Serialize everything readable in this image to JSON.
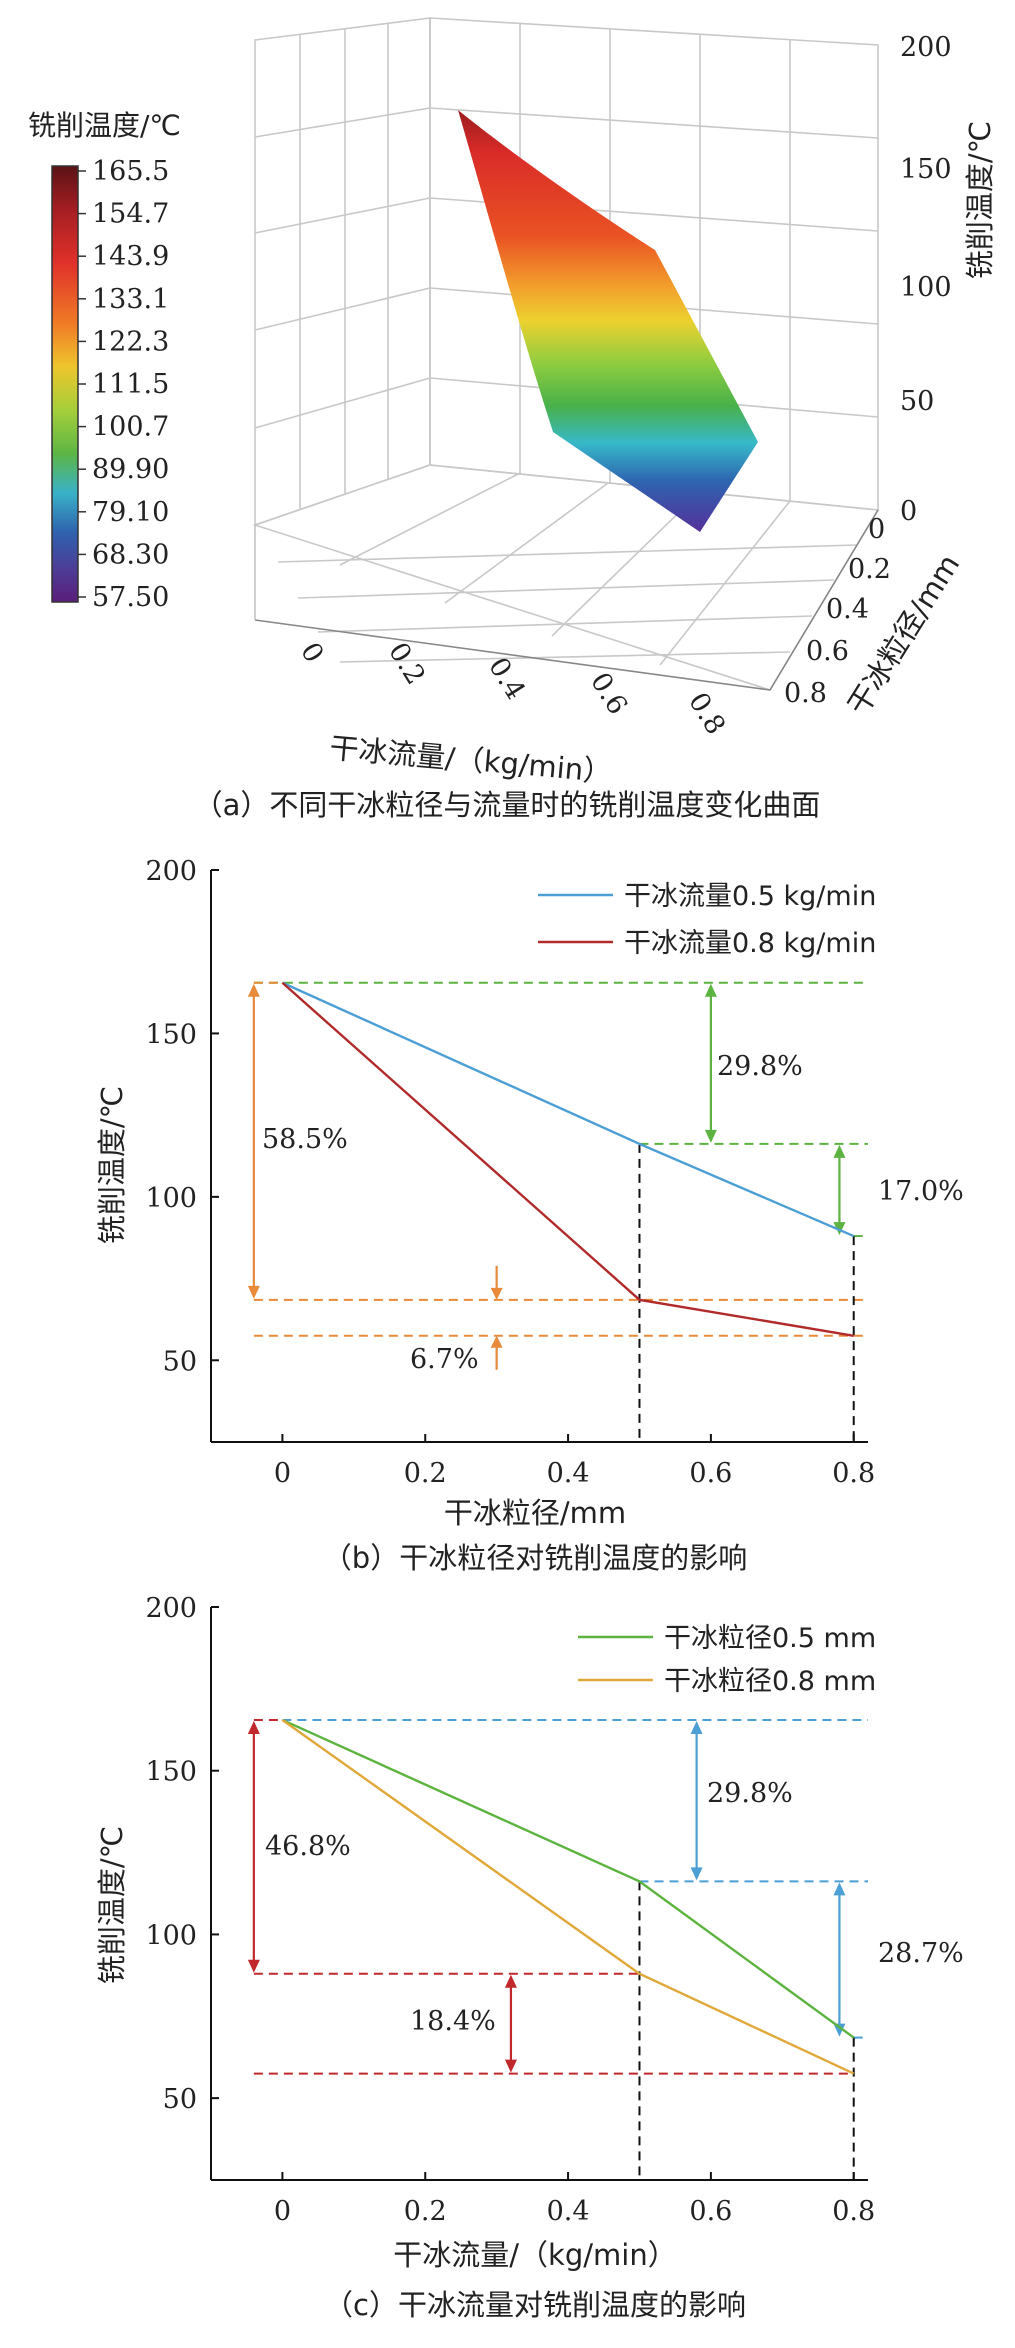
{
  "chart_data": [
    {
      "id": "a",
      "type": "surface",
      "caption": "（a）不同干冰粒径与流量时的铣削温度变化曲面",
      "xlabel": "干冰流量/（kg/min）",
      "ylabel": "干冰粒径/mm",
      "zlabel": "铣削温度/℃",
      "x_ticks": [
        "0",
        "0.2",
        "0.4",
        "0.6",
        "0.8"
      ],
      "y_ticks": [
        "0",
        "0.2",
        "0.4",
        "0.6",
        "0.8"
      ],
      "z_ticks": [
        "0",
        "50",
        "100",
        "150",
        "200"
      ],
      "colorbar_title": "铣削温度/℃",
      "colorbar_ticks": [
        "165.5",
        "154.7",
        "143.9",
        "133.1",
        "122.3",
        "111.5",
        "100.7",
        "89.90",
        "79.10",
        "68.30",
        "57.50"
      ],
      "colorbar_range": [
        57.5,
        165.5
      ],
      "corners": [
        {
          "x": 0,
          "y": 0,
          "z": 165.5
        },
        {
          "x": 0,
          "y": 0.8,
          "z": 88.0
        },
        {
          "x": 0.8,
          "y": 0.8,
          "z": 57.5
        },
        {
          "x": 0.8,
          "y": 0,
          "z": 68.5
        }
      ]
    },
    {
      "id": "b",
      "type": "line",
      "caption": "（b）干冰粒径对铣削温度的影响",
      "xlabel": "干冰粒径/mm",
      "ylabel": "铣削温度/℃",
      "xlim": [
        -0.1,
        0.82
      ],
      "ylim": [
        25,
        200
      ],
      "x_ticks": [
        0,
        0.2,
        0.4,
        0.6,
        0.8
      ],
      "y_ticks": [
        50,
        100,
        150,
        200
      ],
      "x_tick_labels": [
        "0",
        "0.2",
        "0.4",
        "0.6",
        "0.8"
      ],
      "y_tick_labels": [
        "50",
        "100",
        "150",
        "200"
      ],
      "legend_position": "top-right",
      "series": [
        {
          "name": "干冰流量0.5 kg/min",
          "color": "#4b9fd5",
          "x": [
            0,
            0.5,
            0.8
          ],
          "y": [
            165.5,
            116.2,
            88.0
          ]
        },
        {
          "name": "干冰流量0.8 kg/min",
          "color": "#b22a2a",
          "x": [
            0,
            0.5,
            0.8
          ],
          "y": [
            165.5,
            68.5,
            57.5
          ]
        }
      ],
      "annotations": [
        {
          "text": "29.8%",
          "color": "#5cb33f"
        },
        {
          "text": "17.0%",
          "color": "#5cb33f"
        },
        {
          "text": "58.5%",
          "color": "#e88a3a"
        },
        {
          "text": "6.7%",
          "color": "#e88a3a"
        }
      ]
    },
    {
      "id": "c",
      "type": "line",
      "caption": "（c）干冰流量对铣削温度的影响",
      "xlabel": "干冰流量/（kg/min）",
      "ylabel": "铣削温度/℃",
      "xlim": [
        -0.1,
        0.82
      ],
      "ylim": [
        25,
        200
      ],
      "x_ticks": [
        0,
        0.2,
        0.4,
        0.6,
        0.8
      ],
      "y_ticks": [
        50,
        100,
        150,
        200
      ],
      "x_tick_labels": [
        "0",
        "0.2",
        "0.4",
        "0.6",
        "0.8"
      ],
      "y_tick_labels": [
        "50",
        "100",
        "150",
        "200"
      ],
      "legend_position": "top-right",
      "series": [
        {
          "name": "干冰粒径0.5 mm",
          "color": "#5cb33f",
          "x": [
            0,
            0.5,
            0.8
          ],
          "y": [
            165.5,
            116.2,
            68.5
          ]
        },
        {
          "name": "干冰粒径0.8 mm",
          "color": "#e0a83a",
          "x": [
            0,
            0.5,
            0.8
          ],
          "y": [
            165.5,
            88.0,
            57.5
          ]
        }
      ],
      "annotations": [
        {
          "text": "29.8%",
          "color": "#4b9fd5"
        },
        {
          "text": "28.7%",
          "color": "#4b9fd5"
        },
        {
          "text": "46.8%",
          "color": "#c0282c"
        },
        {
          "text": "18.4%",
          "color": "#c0282c"
        }
      ]
    }
  ]
}
